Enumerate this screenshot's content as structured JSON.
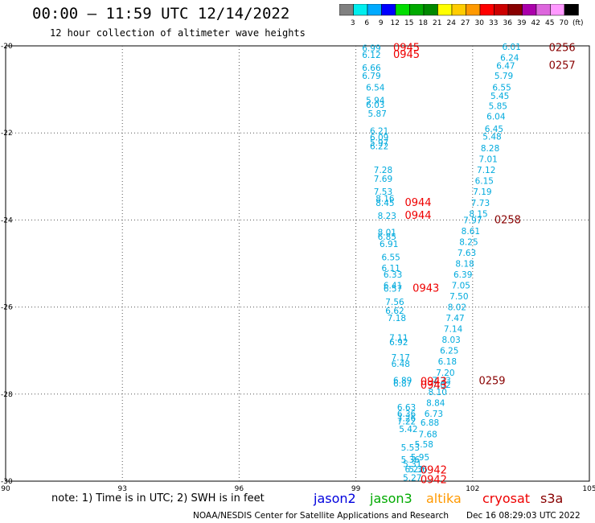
{
  "header": {
    "title": "00:00 – 11:59 UTC 12/14/2022",
    "subtitle": "12 hour collection of altimeter wave heights"
  },
  "colorbar": {
    "colors": [
      "#808080",
      "#00eeee",
      "#00aaff",
      "#0000ff",
      "#00dd00",
      "#00aa00",
      "#008800",
      "#ffff00",
      "#ffcc00",
      "#ff9900",
      "#ff0000",
      "#cc0000",
      "#880000",
      "#aa00aa",
      "#dd66dd",
      "#ff99ff",
      "#000000"
    ],
    "labels": [
      "3",
      "6",
      "9",
      "12",
      "15",
      "18",
      "21",
      "24",
      "27",
      "30",
      "33",
      "36",
      "39",
      "42",
      "45",
      "70",
      "(ft)"
    ]
  },
  "note": "note:  1) Time is in UTC; 2) SWH is in feet",
  "legend": [
    {
      "name": "jason2",
      "color": "#0000dd"
    },
    {
      "name": "jason3",
      "color": "#00aa00"
    },
    {
      "name": "altika",
      "color": "#ff9900"
    },
    {
      "name": "cryosat",
      "color": "#ee0000"
    },
    {
      "name": "s3a",
      "color": "#880000"
    }
  ],
  "footer": {
    "source": "NOAA/NESDIS Center for Satellite Applications and Research",
    "timestamp": "Dec 16 08:29:03 UTC 2022"
  },
  "chart_data": {
    "type": "scatter",
    "xlim": [
      90,
      105
    ],
    "ylim": [
      -30,
      -20
    ],
    "x_ticks": [
      90,
      93,
      96,
      99,
      102,
      105
    ],
    "y_ticks": [
      -20,
      -22,
      -24,
      -26,
      -28,
      -30
    ],
    "grid": true,
    "series": [
      {
        "color": "#00aadd",
        "points": [
          {
            "x": 99.4,
            "y": -20.05,
            "v": "6.99"
          },
          {
            "x": 99.4,
            "y": -20.2,
            "v": "6.12"
          },
          {
            "x": 99.4,
            "y": -20.5,
            "v": "6.66"
          },
          {
            "x": 99.4,
            "y": -20.68,
            "v": "6.79"
          },
          {
            "x": 99.5,
            "y": -20.95,
            "v": "6.54"
          },
          {
            "x": 99.5,
            "y": -21.25,
            "v": "5.94"
          },
          {
            "x": 99.5,
            "y": -21.35,
            "v": "6.03"
          },
          {
            "x": 99.55,
            "y": -21.55,
            "v": "5.87"
          },
          {
            "x": 99.6,
            "y": -21.95,
            "v": "6.21"
          },
          {
            "x": 99.6,
            "y": -22.1,
            "v": "6.09"
          },
          {
            "x": 99.6,
            "y": -22.22,
            "v": "5.97"
          },
          {
            "x": 99.6,
            "y": -22.3,
            "v": "6.22"
          },
          {
            "x": 99.7,
            "y": -22.85,
            "v": "7.28"
          },
          {
            "x": 99.7,
            "y": -23.05,
            "v": "7.69"
          },
          {
            "x": 99.7,
            "y": -23.35,
            "v": "7.53"
          },
          {
            "x": 99.75,
            "y": -23.5,
            "v": "8.16"
          },
          {
            "x": 99.75,
            "y": -23.6,
            "v": "8.45"
          },
          {
            "x": 99.8,
            "y": -23.9,
            "v": "8.23"
          },
          {
            "x": 99.8,
            "y": -24.28,
            "v": "8.01"
          },
          {
            "x": 99.8,
            "y": -24.38,
            "v": "6.85"
          },
          {
            "x": 99.85,
            "y": -24.55,
            "v": "6.91"
          },
          {
            "x": 99.9,
            "y": -24.85,
            "v": "6.55"
          },
          {
            "x": 99.9,
            "y": -25.1,
            "v": "6.11"
          },
          {
            "x": 99.95,
            "y": -25.25,
            "v": "6.33"
          },
          {
            "x": 99.95,
            "y": -25.5,
            "v": "6.41"
          },
          {
            "x": 99.95,
            "y": -25.57,
            "v": "6.57"
          },
          {
            "x": 100.0,
            "y": -25.88,
            "v": "7.56"
          },
          {
            "x": 100.0,
            "y": -26.08,
            "v": "6.62"
          },
          {
            "x": 100.05,
            "y": -26.25,
            "v": "7.18"
          },
          {
            "x": 100.1,
            "y": -26.7,
            "v": "7.11"
          },
          {
            "x": 100.1,
            "y": -26.8,
            "v": "6.92"
          },
          {
            "x": 100.15,
            "y": -27.15,
            "v": "7.17"
          },
          {
            "x": 100.15,
            "y": -27.3,
            "v": "6.48"
          },
          {
            "x": 100.2,
            "y": -27.68,
            "v": "6.89"
          },
          {
            "x": 100.2,
            "y": -27.75,
            "v": "6.87"
          },
          {
            "x": 100.3,
            "y": -28.3,
            "v": "6.63"
          },
          {
            "x": 100.3,
            "y": -28.45,
            "v": "6.36"
          },
          {
            "x": 100.3,
            "y": -28.55,
            "v": "7.26"
          },
          {
            "x": 100.3,
            "y": -28.62,
            "v": "7.22"
          },
          {
            "x": 100.35,
            "y": -28.8,
            "v": "5.42"
          },
          {
            "x": 100.4,
            "y": -29.22,
            "v": "5.53"
          },
          {
            "x": 100.4,
            "y": -29.5,
            "v": "5.36"
          },
          {
            "x": 100.45,
            "y": -29.6,
            "v": "5.31"
          },
          {
            "x": 100.5,
            "y": -29.72,
            "v": "6.22"
          },
          {
            "x": 100.45,
            "y": -29.92,
            "v": "5.27"
          },
          {
            "x": 103.0,
            "y": -20.02,
            "v": "6.01"
          },
          {
            "x": 102.95,
            "y": -20.27,
            "v": "6.24"
          },
          {
            "x": 102.85,
            "y": -20.45,
            "v": "6.47"
          },
          {
            "x": 102.8,
            "y": -20.68,
            "v": "5.79"
          },
          {
            "x": 102.75,
            "y": -20.95,
            "v": "6.55"
          },
          {
            "x": 102.7,
            "y": -21.15,
            "v": "5.45"
          },
          {
            "x": 102.65,
            "y": -21.38,
            "v": "5.85"
          },
          {
            "x": 102.6,
            "y": -21.62,
            "v": "6.04"
          },
          {
            "x": 102.55,
            "y": -21.9,
            "v": "6.45"
          },
          {
            "x": 102.5,
            "y": -22.08,
            "v": "5.48"
          },
          {
            "x": 102.45,
            "y": -22.35,
            "v": "8.28"
          },
          {
            "x": 102.4,
            "y": -22.6,
            "v": "7.01"
          },
          {
            "x": 102.35,
            "y": -22.85,
            "v": "7.12"
          },
          {
            "x": 102.3,
            "y": -23.1,
            "v": "6.15"
          },
          {
            "x": 102.25,
            "y": -23.35,
            "v": "7.19"
          },
          {
            "x": 102.2,
            "y": -23.6,
            "v": "7.73"
          },
          {
            "x": 102.15,
            "y": -23.85,
            "v": "8.15"
          },
          {
            "x": 102.0,
            "y": -24.0,
            "v": "7.97"
          },
          {
            "x": 101.95,
            "y": -24.25,
            "v": "8.61"
          },
          {
            "x": 101.9,
            "y": -24.5,
            "v": "8.25"
          },
          {
            "x": 101.85,
            "y": -24.75,
            "v": "7.63"
          },
          {
            "x": 101.8,
            "y": -25.0,
            "v": "8.18"
          },
          {
            "x": 101.75,
            "y": -25.25,
            "v": "6.39"
          },
          {
            "x": 101.7,
            "y": -25.5,
            "v": "7.05"
          },
          {
            "x": 101.65,
            "y": -25.75,
            "v": "7.50"
          },
          {
            "x": 101.6,
            "y": -26.0,
            "v": "8.02"
          },
          {
            "x": 101.55,
            "y": -26.25,
            "v": "7.47"
          },
          {
            "x": 101.5,
            "y": -26.5,
            "v": "7.14"
          },
          {
            "x": 101.45,
            "y": -26.75,
            "v": "8.03"
          },
          {
            "x": 101.4,
            "y": -27.0,
            "v": "6.25"
          },
          {
            "x": 101.35,
            "y": -27.25,
            "v": "6.18"
          },
          {
            "x": 101.3,
            "y": -27.5,
            "v": "7.20"
          },
          {
            "x": 101.2,
            "y": -27.68,
            "v": "7.23"
          },
          {
            "x": 101.2,
            "y": -27.78,
            "v": "7.02"
          },
          {
            "x": 101.1,
            "y": -27.95,
            "v": "8.10"
          },
          {
            "x": 101.05,
            "y": -28.2,
            "v": "8.84"
          },
          {
            "x": 101.0,
            "y": -28.45,
            "v": "6.73"
          },
          {
            "x": 100.9,
            "y": -28.65,
            "v": "6.88"
          },
          {
            "x": 100.85,
            "y": -28.92,
            "v": "7.68"
          },
          {
            "x": 100.75,
            "y": -29.15,
            "v": "5.58"
          },
          {
            "x": 100.65,
            "y": -29.45,
            "v": "5.95"
          },
          {
            "x": 100.6,
            "y": -29.72,
            "v": "5.36"
          }
        ]
      },
      {
        "color": "#ee0000",
        "points": [
          {
            "x": 100.3,
            "y": -20.05,
            "v": "0945"
          },
          {
            "x": 100.3,
            "y": -20.2,
            "v": "0945"
          },
          {
            "x": 100.6,
            "y": -23.6,
            "v": "0944"
          },
          {
            "x": 100.6,
            "y": -23.9,
            "v": "0944"
          },
          {
            "x": 100.8,
            "y": -25.57,
            "v": "0943"
          },
          {
            "x": 101.0,
            "y": -27.72,
            "v": "0943"
          },
          {
            "x": 101.0,
            "y": -27.8,
            "v": "0943"
          },
          {
            "x": 101.0,
            "y": -29.75,
            "v": "0942"
          },
          {
            "x": 101.0,
            "y": -29.97,
            "v": "0942"
          }
        ]
      },
      {
        "color": "#880000",
        "points": [
          {
            "x": 104.3,
            "y": -20.05,
            "v": "0256"
          },
          {
            "x": 104.3,
            "y": -20.45,
            "v": "0257"
          },
          {
            "x": 102.9,
            "y": -24.0,
            "v": "0258"
          },
          {
            "x": 102.5,
            "y": -27.7,
            "v": "0259"
          }
        ]
      }
    ]
  }
}
